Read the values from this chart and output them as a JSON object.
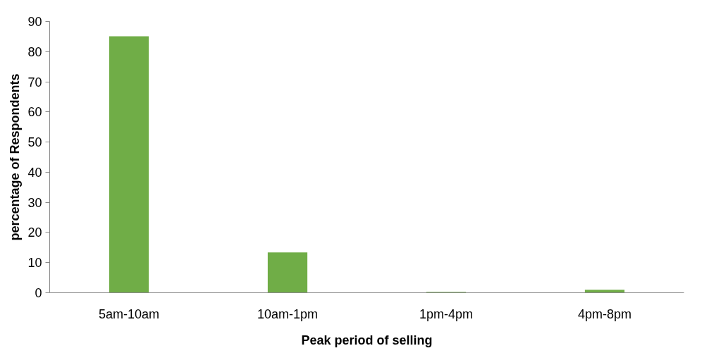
{
  "chart_data": {
    "type": "bar",
    "categories": [
      "5am-10am",
      "10am-1pm",
      "1pm-4pm",
      "4pm-8pm"
    ],
    "values": [
      85.1,
      13.4,
      0.3,
      1.0
    ],
    "color": "#70ad47",
    "xlabel": "Peak period of selling",
    "ylabel": "percentage of Respondents",
    "ylim": [
      0,
      90
    ],
    "yticks": [
      0,
      10,
      20,
      30,
      40,
      50,
      60,
      70,
      80,
      90
    ],
    "grid": false
  }
}
